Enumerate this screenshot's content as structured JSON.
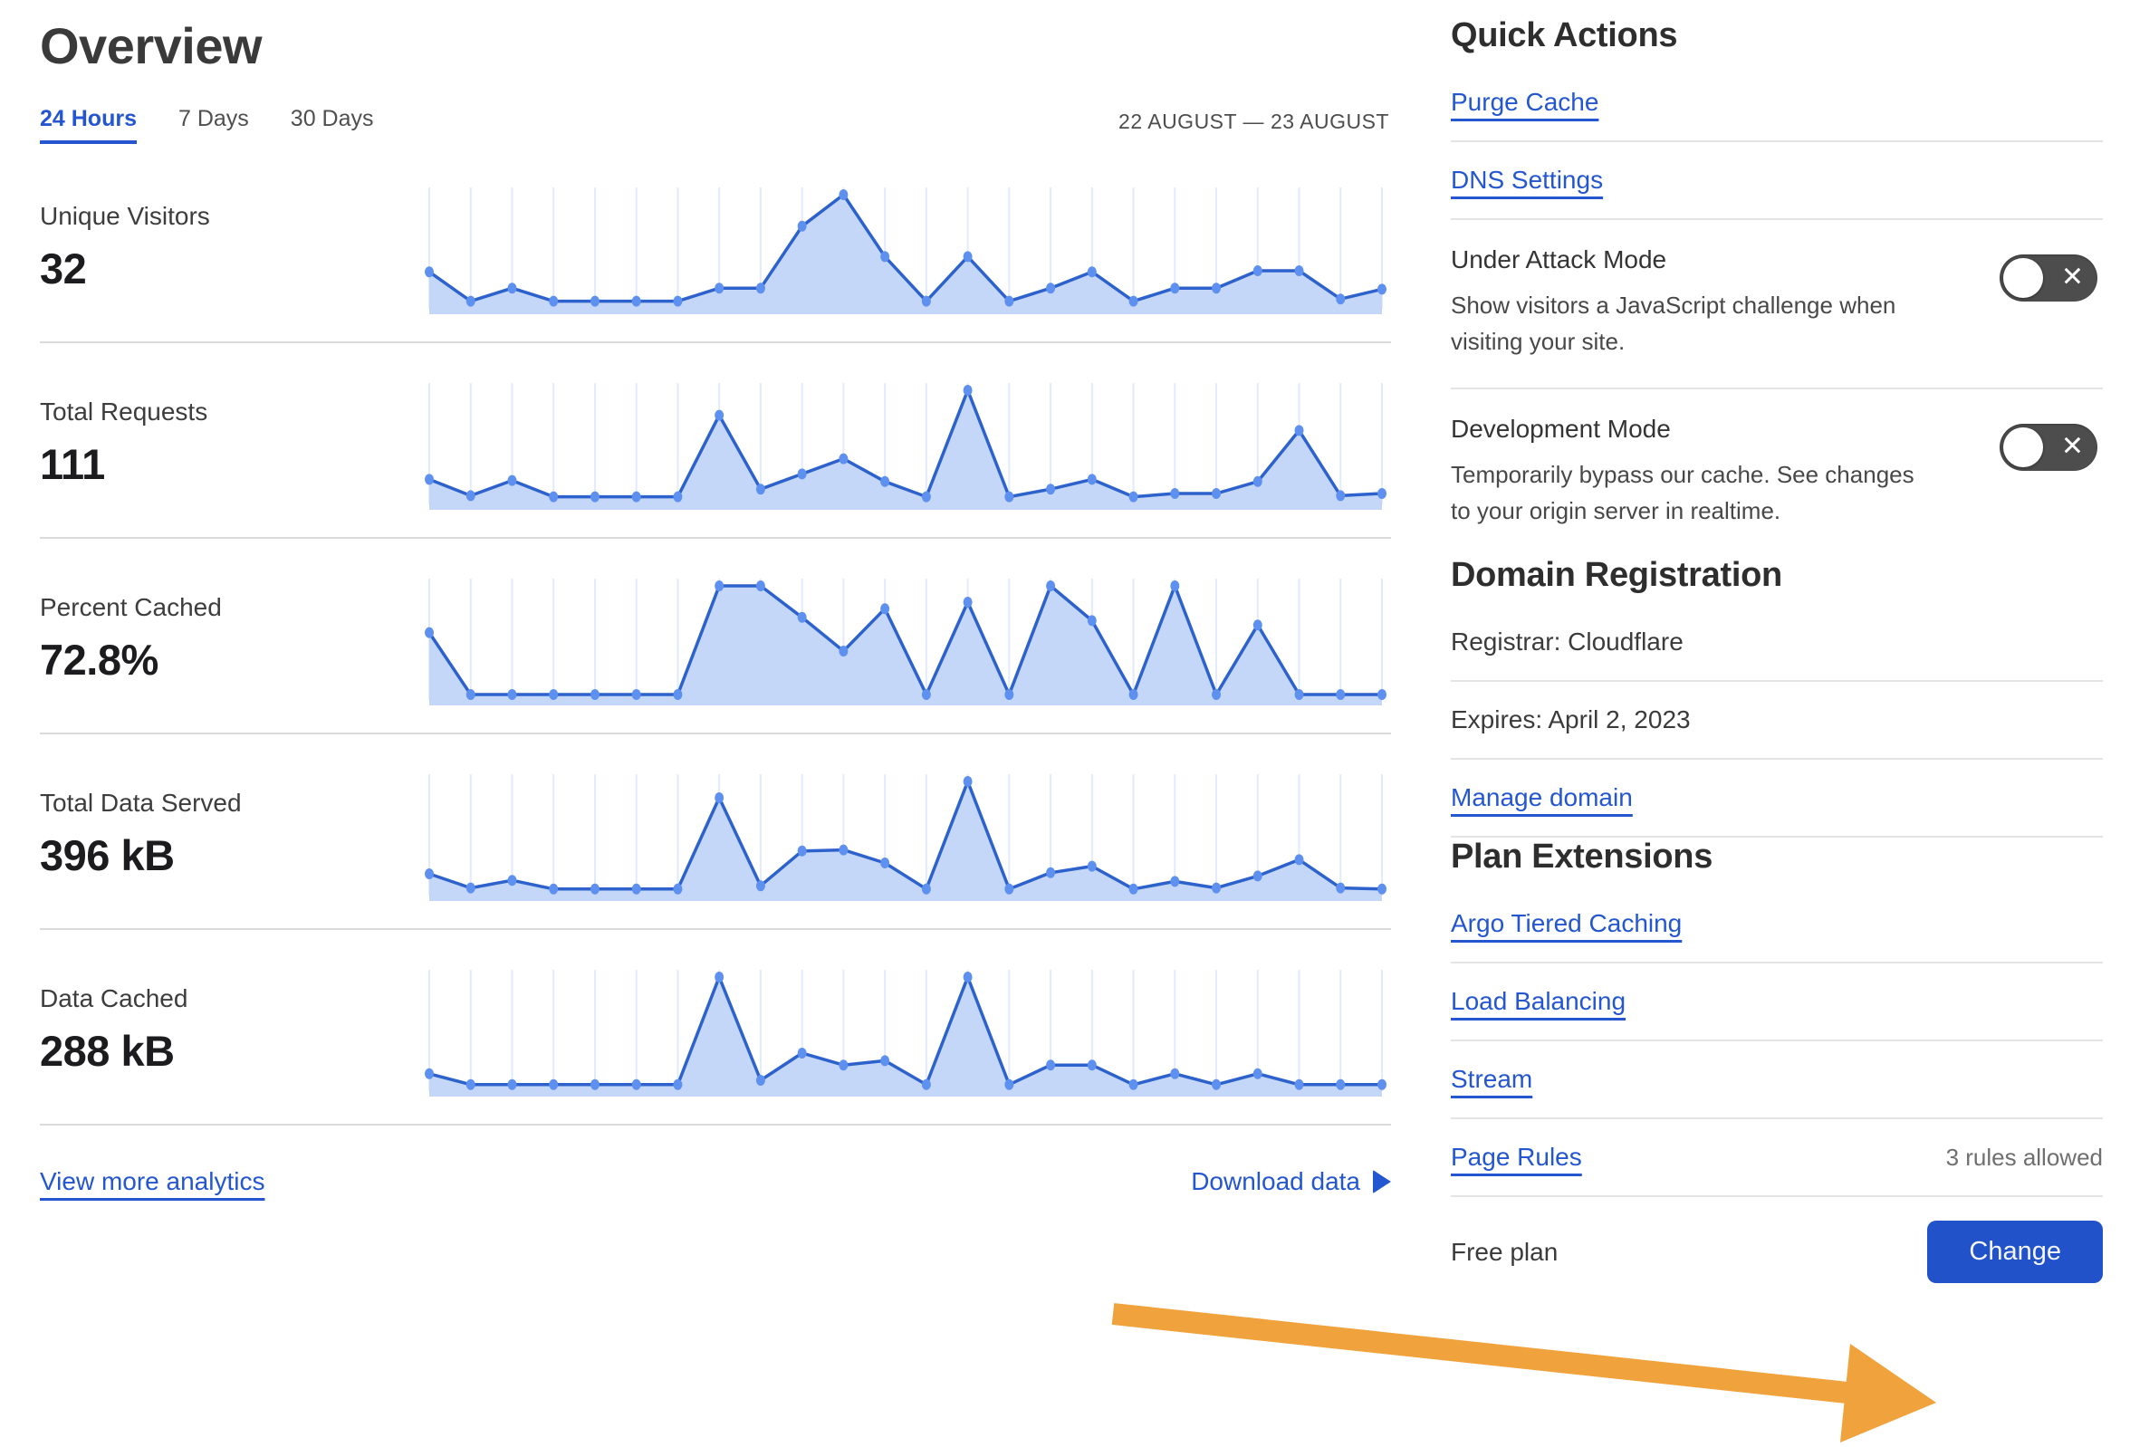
{
  "page": {
    "title": "Overview"
  },
  "tabs": [
    {
      "label": "24 Hours",
      "active": true
    },
    {
      "label": "7 Days",
      "active": false
    },
    {
      "label": "30 Days",
      "active": false
    }
  ],
  "date_range": "22 AUGUST — 23 AUGUST",
  "metrics": [
    {
      "label": "Unique Visitors",
      "value": "32"
    },
    {
      "label": "Total Requests",
      "value": "111"
    },
    {
      "label": "Percent Cached",
      "value": "72.8%"
    },
    {
      "label": "Total Data Served",
      "value": "396 kB"
    },
    {
      "label": "Data Cached",
      "value": "288 kB"
    }
  ],
  "chart_data": [
    {
      "type": "area",
      "title": "Unique Visitors sparkline",
      "x_points": 24,
      "x_range": "22 August — 23 August (hourly)",
      "axis_labels": "none shown",
      "grid": "vertical only",
      "values_note": "relative heights 0-100 estimated from pixels",
      "values": [
        29,
        2,
        14,
        2,
        2,
        2,
        2,
        14,
        14,
        71,
        100,
        43,
        2,
        43,
        2,
        14,
        29,
        2,
        14,
        14,
        30,
        30,
        4,
        13
      ]
    },
    {
      "type": "area",
      "title": "Total Requests sparkline",
      "x_points": 24,
      "x_range": "22 August — 23 August (hourly)",
      "axis_labels": "none shown",
      "grid": "vertical only",
      "values_note": "relative heights 0-100 estimated from pixels",
      "values": [
        18,
        3,
        17,
        2,
        2,
        2,
        2,
        77,
        9,
        23,
        37,
        16,
        2,
        100,
        2,
        9,
        18,
        2,
        5,
        5,
        16,
        63,
        3,
        5
      ]
    },
    {
      "type": "area",
      "title": "Percent Cached sparkline",
      "x_points": 24,
      "x_range": "22 August — 23 August (hourly)",
      "axis_labels": "none shown",
      "grid": "vertical only",
      "values_note": "relative heights 0-100 estimated from pixels",
      "values": [
        57,
        0,
        0,
        0,
        0,
        0,
        0,
        100,
        100,
        71,
        40,
        79,
        0,
        85,
        0,
        100,
        68,
        0,
        100,
        0,
        64,
        0,
        0,
        0
      ]
    },
    {
      "type": "area",
      "title": "Total Data Served sparkline",
      "x_points": 24,
      "x_range": "22 August — 23 August (hourly)",
      "axis_labels": "none shown",
      "grid": "vertical only",
      "values_note": "relative heights 0-100 estimated from pixels",
      "values": [
        15,
        2,
        9,
        1,
        1,
        1,
        1,
        85,
        4,
        36,
        37,
        25,
        1,
        100,
        1,
        16,
        22,
        1,
        8,
        2,
        13,
        28,
        2,
        1
      ]
    },
    {
      "type": "area",
      "title": "Data Cached sparkline",
      "x_points": 24,
      "x_range": "22 August — 23 August (hourly)",
      "axis_labels": "none shown",
      "grid": "vertical only",
      "values_note": "relative heights 0-100 estimated from pixels",
      "values": [
        11,
        1,
        1,
        1,
        1,
        1,
        1,
        100,
        5,
        30,
        19,
        23,
        1,
        100,
        1,
        19,
        19,
        1,
        11,
        1,
        11,
        1,
        1,
        1
      ]
    }
  ],
  "footer_links": {
    "view_more": "View more analytics",
    "download": "Download data"
  },
  "quick_actions": {
    "heading": "Quick Actions",
    "links": [
      {
        "label": "Purge Cache"
      },
      {
        "label": "DNS Settings"
      }
    ],
    "toggles": [
      {
        "title": "Under Attack Mode",
        "description": "Show visitors a JavaScript challenge when visiting your site.",
        "state": "off"
      },
      {
        "title": "Development Mode",
        "description": "Temporarily bypass our cache. See changes to your origin server in realtime.",
        "state": "off"
      }
    ]
  },
  "domain_registration": {
    "heading": "Domain Registration",
    "registrar": "Registrar: Cloudflare",
    "expires": "Expires: April 2, 2023",
    "manage_link": "Manage domain"
  },
  "plan_extensions": {
    "heading": "Plan Extensions",
    "links": [
      {
        "label": "Argo Tiered Caching",
        "note": ""
      },
      {
        "label": "Load Balancing",
        "note": ""
      },
      {
        "label": "Stream",
        "note": ""
      },
      {
        "label": "Page Rules",
        "note": "3 rules allowed"
      }
    ]
  },
  "plan": {
    "label": "Free plan",
    "button": "Change"
  },
  "colors": {
    "accent_blue": "#2456d0",
    "button_blue": "#2152c9",
    "chart_line": "#2d62cc",
    "chart_dot": "#5e90ef",
    "chart_fill": "#c4d7f9",
    "chart_grid": "#e2ebfa",
    "toggle_off_bg": "#4d4d4d",
    "annotation_arrow_orange": "#f0a23d",
    "divider_gray": "#dadada"
  }
}
